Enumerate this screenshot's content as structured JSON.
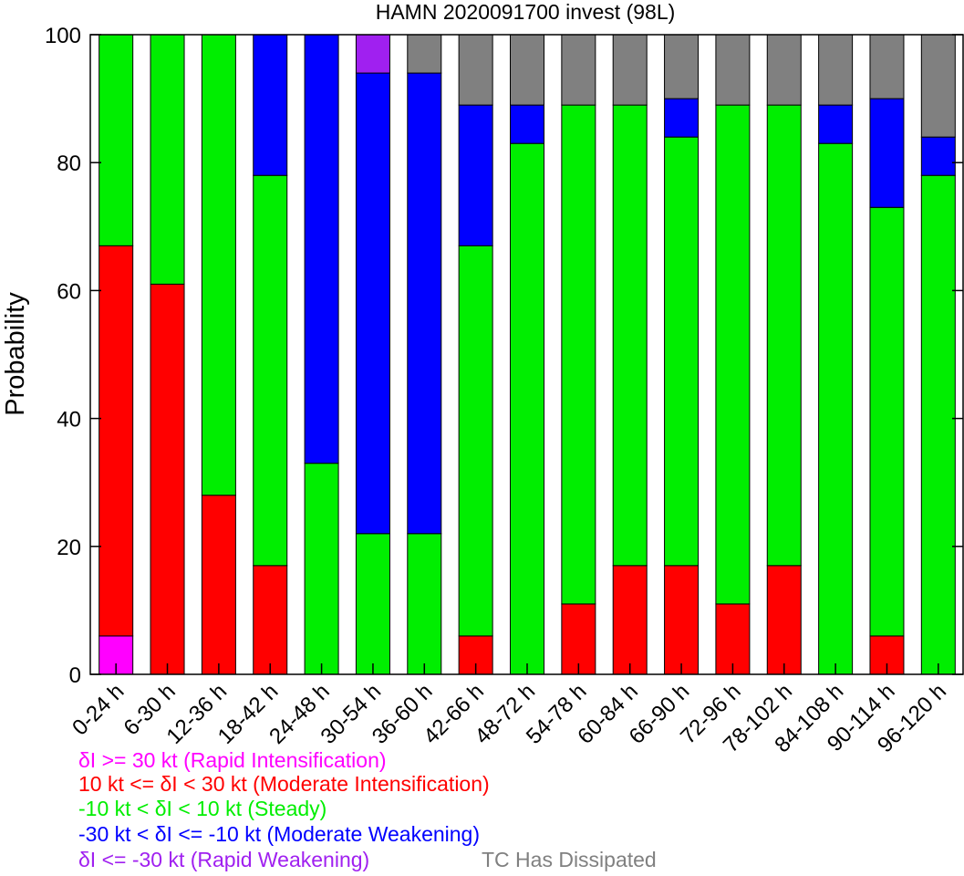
{
  "chart_data": {
    "type": "bar",
    "stacked": true,
    "title": "HAMN 2020091700 invest (98L)",
    "xlabel": "",
    "ylabel": "Probability",
    "ylim": [
      0,
      100
    ],
    "yticks": [
      0,
      20,
      40,
      60,
      80,
      100
    ],
    "grid": false,
    "legend_placement": "bottom-left",
    "categories": [
      "0-24 h",
      "6-30 h",
      "12-36 h",
      "18-42 h",
      "24-48 h",
      "30-54 h",
      "36-60 h",
      "42-66 h",
      "48-72 h",
      "54-78 h",
      "60-84 h",
      "66-90 h",
      "72-96 h",
      "78-102 h",
      "84-108 h",
      "90-114 h",
      "96-120 h"
    ],
    "series": [
      {
        "name": "δI >= 30 kt (Rapid Intensification)",
        "color": "#ff00ff",
        "values": [
          6,
          0,
          0,
          0,
          0,
          0,
          0,
          0,
          0,
          0,
          0,
          0,
          0,
          0,
          0,
          0,
          0
        ]
      },
      {
        "name": "10 kt <= δI < 30 kt (Moderate Intensification)",
        "color": "#ff0000",
        "values": [
          61,
          61,
          28,
          17,
          0,
          0,
          0,
          6,
          0,
          11,
          17,
          17,
          11,
          17,
          0,
          6,
          0
        ]
      },
      {
        "name": "-10 kt < δI < 10 kt (Steady)",
        "color": "#00ee00",
        "values": [
          33,
          39,
          72,
          61,
          33,
          22,
          22,
          61,
          83,
          78,
          72,
          67,
          78,
          72,
          83,
          67,
          78
        ]
      },
      {
        "name": "-30 kt < δI <= -10 kt (Moderate Weakening)",
        "color": "#0000ff",
        "values": [
          0,
          0,
          0,
          22,
          67,
          72,
          72,
          22,
          6,
          0,
          0,
          6,
          0,
          0,
          6,
          17,
          6
        ]
      },
      {
        "name": "δI <= -30 kt (Rapid Weakening)",
        "color": "#a020f0",
        "values": [
          0,
          0,
          0,
          0,
          0,
          6,
          0,
          0,
          0,
          0,
          0,
          0,
          0,
          0,
          0,
          0,
          0
        ]
      },
      {
        "name": "TC Has Dissipated",
        "color": "#808080",
        "values": [
          0,
          0,
          0,
          0,
          0,
          0,
          6,
          11,
          11,
          11,
          11,
          10,
          11,
          11,
          11,
          10,
          16
        ]
      }
    ]
  }
}
